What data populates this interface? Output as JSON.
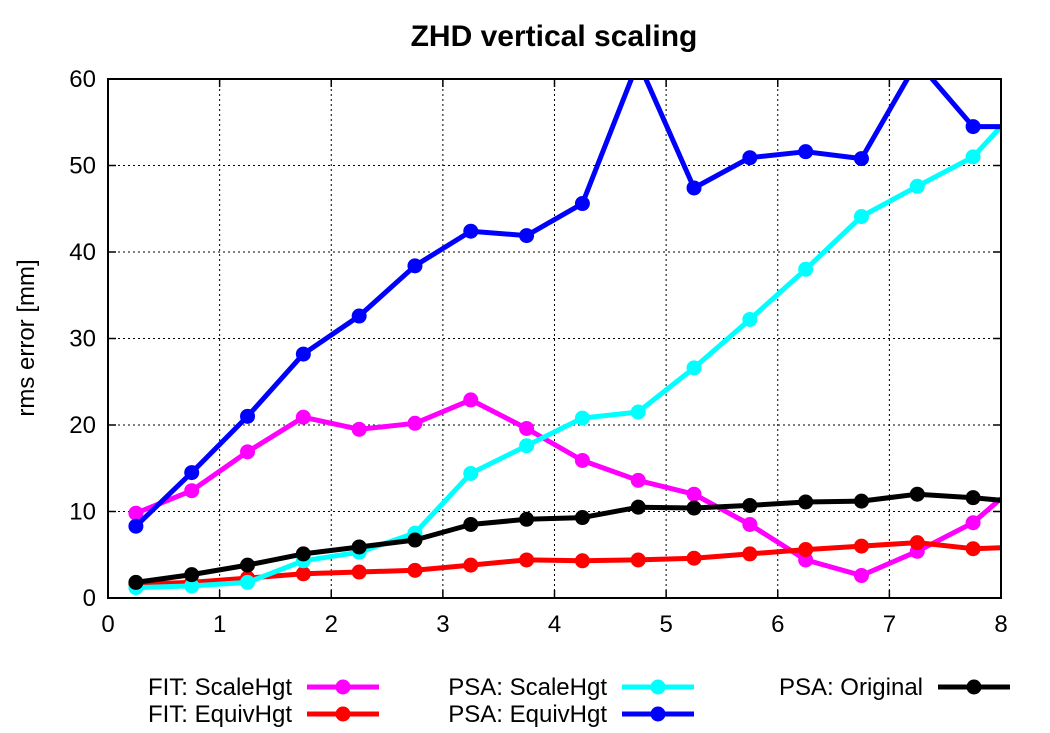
{
  "chart_data": {
    "type": "line",
    "title": "ZHD vertical scaling",
    "xlabel": "",
    "ylabel": "rms error [mm]",
    "xlim": [
      0,
      8
    ],
    "ylim": [
      0,
      60
    ],
    "xticks": [
      0,
      1,
      2,
      3,
      4,
      5,
      6,
      7,
      8
    ],
    "yticks": [
      0,
      10,
      20,
      30,
      40,
      50,
      60
    ],
    "grid": true,
    "legend_position": "bottom",
    "x": [
      0.25,
      0.75,
      1.25,
      1.75,
      2.25,
      2.75,
      3.25,
      3.75,
      4.25,
      4.75,
      5.25,
      5.75,
      6.25,
      6.75,
      7.25,
      7.75,
      8.0
    ],
    "series": [
      {
        "name": "FIT: ScaleHgt",
        "color": "#ff00ff",
        "values": [
          9.8,
          12.4,
          16.9,
          20.9,
          19.5,
          20.2,
          22.9,
          19.6,
          15.9,
          13.6,
          12.0,
          8.5,
          4.4,
          2.6,
          5.4,
          8.7,
          11.5
        ]
      },
      {
        "name": "FIT: EquivHgt",
        "color": "#ff0000",
        "values": [
          1.6,
          1.8,
          2.3,
          2.8,
          3.0,
          3.2,
          3.8,
          4.4,
          4.3,
          4.4,
          4.6,
          5.1,
          5.6,
          6.0,
          6.4,
          5.7,
          5.8
        ]
      },
      {
        "name": "PSA: ScaleHgt",
        "color": "#00ffff",
        "values": [
          1.2,
          1.4,
          1.8,
          4.3,
          5.3,
          7.5,
          14.4,
          17.6,
          20.8,
          21.5,
          26.6,
          32.2,
          38.0,
          44.1,
          47.6,
          51.0,
          54.5
        ]
      },
      {
        "name": "PSA: EquivHgt",
        "color": "#0000ff",
        "values": [
          8.3,
          14.5,
          21.0,
          28.2,
          32.6,
          38.4,
          42.4,
          41.9,
          45.6,
          62.0,
          47.4,
          50.9,
          51.6,
          50.8,
          62.0,
          54.5,
          54.5
        ]
      },
      {
        "name": "PSA: Original",
        "color": "#000000",
        "values": [
          1.8,
          2.7,
          3.8,
          5.1,
          5.9,
          6.7,
          8.5,
          9.1,
          9.3,
          10.5,
          10.4,
          10.7,
          11.1,
          11.2,
          12.0,
          11.6,
          11.3
        ]
      }
    ]
  }
}
